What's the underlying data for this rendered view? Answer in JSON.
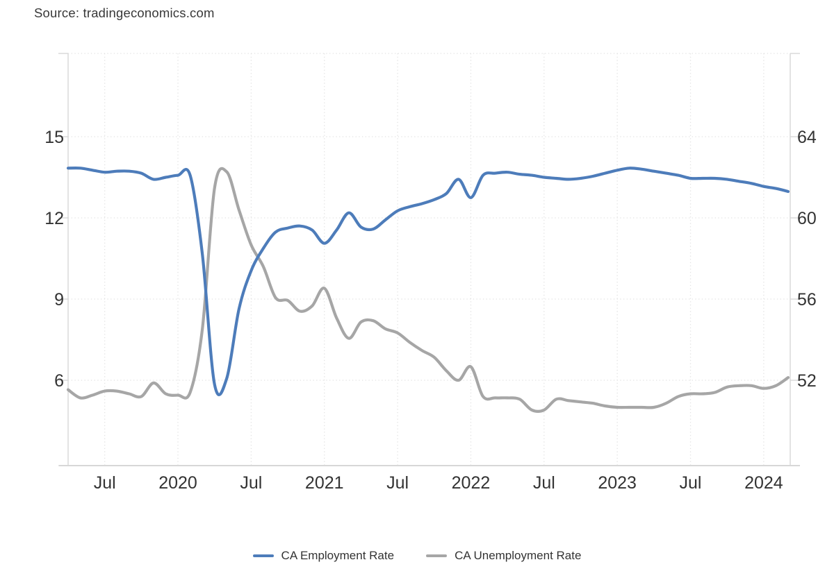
{
  "source": {
    "label": "Source: tradingeconomics.com"
  },
  "chart_data": {
    "type": "line",
    "title": "",
    "xlabel": "",
    "ylabel": "",
    "grid": "dotted",
    "legend_position": "bottom",
    "x": [
      "2019-04",
      "2019-05",
      "2019-06",
      "2019-07",
      "2019-08",
      "2019-09",
      "2019-10",
      "2019-11",
      "2019-12",
      "2020-01",
      "2020-02",
      "2020-03",
      "2020-04",
      "2020-05",
      "2020-06",
      "2020-07",
      "2020-08",
      "2020-09",
      "2020-10",
      "2020-11",
      "2020-12",
      "2021-01",
      "2021-02",
      "2021-03",
      "2021-04",
      "2021-05",
      "2021-06",
      "2021-07",
      "2021-08",
      "2021-09",
      "2021-10",
      "2021-11",
      "2021-12",
      "2022-01",
      "2022-02",
      "2022-03",
      "2022-04",
      "2022-05",
      "2022-06",
      "2022-07",
      "2022-08",
      "2022-09",
      "2022-10",
      "2022-11",
      "2022-12",
      "2023-01",
      "2023-02",
      "2023-03",
      "2023-04",
      "2023-05",
      "2023-06",
      "2023-07",
      "2023-08",
      "2023-09",
      "2023-10",
      "2023-11",
      "2023-12",
      "2024-01",
      "2024-02",
      "2024-03"
    ],
    "x_ticks": [
      {
        "i": 3,
        "label": "Jul"
      },
      {
        "i": 9,
        "label": "2020"
      },
      {
        "i": 15,
        "label": "Jul"
      },
      {
        "i": 21,
        "label": "2021"
      },
      {
        "i": 27,
        "label": "Jul"
      },
      {
        "i": 33,
        "label": "2022"
      },
      {
        "i": 39,
        "label": "Jul"
      },
      {
        "i": 45,
        "label": "2023"
      },
      {
        "i": 51,
        "label": "Jul"
      },
      {
        "i": 57,
        "label": "2024"
      }
    ],
    "left_axis": {
      "ticks": [
        15,
        12,
        9,
        6
      ],
      "range": [
        2.85,
        18.1
      ],
      "series": "CA Unemployment Rate"
    },
    "right_axis": {
      "ticks": [
        64,
        60,
        56,
        52
      ],
      "range": [
        47.8,
        68.1
      ],
      "series": "CA Employment Rate"
    },
    "series": [
      {
        "name": "CA Employment Rate",
        "axis": "right",
        "color": "#4d7cba",
        "values": [
          62.45,
          62.45,
          62.35,
          62.25,
          62.3,
          62.3,
          62.2,
          61.9,
          62.0,
          62.1,
          62.1,
          58.2,
          51.8,
          52.1,
          55.5,
          57.4,
          58.5,
          59.3,
          59.5,
          59.6,
          59.4,
          58.75,
          59.4,
          60.25,
          59.55,
          59.45,
          59.9,
          60.35,
          60.55,
          60.7,
          60.9,
          61.2,
          61.9,
          61.0,
          62.1,
          62.2,
          62.25,
          62.15,
          62.1,
          62.0,
          61.95,
          61.9,
          61.95,
          62.05,
          62.2,
          62.35,
          62.45,
          62.4,
          62.3,
          62.2,
          62.1,
          61.95,
          61.95,
          61.95,
          61.9,
          61.8,
          61.7,
          61.55,
          61.45,
          61.3
        ]
      },
      {
        "name": "CA Unemployment Rate",
        "axis": "left",
        "color": "#a6a6a6",
        "values": [
          5.65,
          5.35,
          5.45,
          5.6,
          5.6,
          5.5,
          5.4,
          5.9,
          5.5,
          5.45,
          5.55,
          7.9,
          13.1,
          13.7,
          12.3,
          11.0,
          10.2,
          9.05,
          8.95,
          8.55,
          8.75,
          9.4,
          8.3,
          7.55,
          8.15,
          8.2,
          7.9,
          7.75,
          7.4,
          7.1,
          6.85,
          6.35,
          6.0,
          6.5,
          5.4,
          5.35,
          5.35,
          5.3,
          4.9,
          4.9,
          5.3,
          5.25,
          5.2,
          5.15,
          5.05,
          5.0,
          5.0,
          5.0,
          5.0,
          5.15,
          5.4,
          5.5,
          5.5,
          5.55,
          5.75,
          5.8,
          5.8,
          5.7,
          5.8,
          6.1
        ]
      }
    ],
    "colors": {
      "grid": "#e2e2e2",
      "axis_line": "#d7d7d7",
      "tick_label": "#333333"
    }
  }
}
